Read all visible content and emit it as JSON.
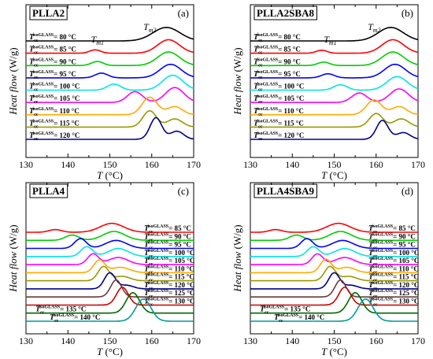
{
  "chart_data": [
    {
      "type": "line",
      "panel_name": "PLLA2",
      "panel_letter": "(a)",
      "xlabel": "T (°C)",
      "ylabel": "Heat flow (W/g)",
      "xlim": [
        130,
        170
      ],
      "x_ticks": [
        130,
        140,
        150,
        160,
        170
      ],
      "peak_labels": [
        {
          "text": "Tm1",
          "x": 145.5
        },
        {
          "text": "Tm2",
          "x": 158
        }
      ],
      "series": [
        {
          "label": "Tcc isoGLASS = 80 °C",
          "color": "#000000",
          "peaks": [
            {
              "x": 163.5,
              "h": 1.0,
              "w": 3.2
            }
          ]
        },
        {
          "label": "Tcc isoGLASS = 85 °C",
          "color": "#ff0000",
          "peaks": [
            {
              "x": 164,
              "h": 1.0,
              "w": 2.6
            },
            {
              "x": 146.5,
              "h": 0.25,
              "w": 1.3
            }
          ]
        },
        {
          "label": "Tcc isoGLASS = 90 °C",
          "color": "#00cc00",
          "peaks": [
            {
              "x": 164,
              "h": 1.0,
              "w": 2.6
            },
            {
              "x": 147,
              "h": 0.3,
              "w": 1.4
            }
          ]
        },
        {
          "label": "Tcc isoGLASS = 95 °C",
          "color": "#0000ff",
          "peaks": [
            {
              "x": 164.5,
              "h": 1.0,
              "w": 2.5
            },
            {
              "x": 148,
              "h": 0.35,
              "w": 1.5
            }
          ]
        },
        {
          "label": "Tcc isoGLASS = 100 °C",
          "color": "#00e5e5",
          "peaks": [
            {
              "x": 165,
              "h": 1.1,
              "w": 2.4
            },
            {
              "x": 151,
              "h": 0.45,
              "w": 1.6
            }
          ]
        },
        {
          "label": "Tcc isoGLASS = 105 °C",
          "color": "#ff00ff",
          "peaks": [
            {
              "x": 165.5,
              "h": 1.1,
              "w": 2.2
            },
            {
              "x": 156,
              "h": 0.8,
              "w": 1.8
            }
          ]
        },
        {
          "label": "Tcc isoGLASS = 110 °C",
          "color": "#ffaa00",
          "peaks": [
            {
              "x": 159.5,
              "h": 1.3,
              "w": 1.8
            },
            {
              "x": 165.5,
              "h": 0.6,
              "w": 1.8
            }
          ]
        },
        {
          "label": "Tcc isoGLASS = 115 °C",
          "color": "#999900",
          "peaks": [
            {
              "x": 159.5,
              "h": 1.2,
              "w": 1.6
            },
            {
              "x": 165.5,
              "h": 0.6,
              "w": 1.8
            }
          ]
        },
        {
          "label": "Tcc isoGLASS = 120 °C",
          "color": "#000088",
          "peaks": [
            {
              "x": 161,
              "h": 1.6,
              "w": 1.4
            },
            {
              "x": 166,
              "h": 0.6,
              "w": 1.6
            }
          ]
        }
      ]
    },
    {
      "type": "line",
      "panel_name": "PLLA2SBA8",
      "panel_letter": "(b)",
      "xlabel": "T (°C)",
      "ylabel": "Heat flow (W/g)",
      "xlim": [
        130,
        170
      ],
      "x_ticks": [
        130,
        140,
        150,
        160,
        170
      ],
      "peak_labels": [
        {
          "text": "Tm1",
          "x": 147.5
        },
        {
          "text": "Tm2",
          "x": 158
        }
      ],
      "series": [
        {
          "label": "Tcc isoGLASS = 80 °C",
          "color": "#000000",
          "peaks": [
            {
              "x": 163.5,
              "h": 1.0,
              "w": 3.0
            }
          ]
        },
        {
          "label": "Tcc isoGLASS = 85 °C",
          "color": "#ff0000",
          "peaks": [
            {
              "x": 164,
              "h": 1.0,
              "w": 2.6
            },
            {
              "x": 147,
              "h": 0.22,
              "w": 1.3
            }
          ]
        },
        {
          "label": "Tcc isoGLASS = 90 °C",
          "color": "#00cc00",
          "peaks": [
            {
              "x": 164,
              "h": 1.0,
              "w": 2.6
            },
            {
              "x": 147.5,
              "h": 0.25,
              "w": 1.4
            }
          ]
        },
        {
          "label": "Tcc isoGLASS = 95 °C",
          "color": "#0000ff",
          "peaks": [
            {
              "x": 164.5,
              "h": 1.0,
              "w": 2.5
            },
            {
              "x": 148.5,
              "h": 0.3,
              "w": 1.5
            }
          ]
        },
        {
          "label": "Tcc isoGLASS = 100 °C",
          "color": "#00e5e5",
          "peaks": [
            {
              "x": 165,
              "h": 1.0,
              "w": 2.4
            },
            {
              "x": 151.5,
              "h": 0.4,
              "w": 1.6
            }
          ]
        },
        {
          "label": "Tcc isoGLASS = 105 °C",
          "color": "#ff00ff",
          "peaks": [
            {
              "x": 165.5,
              "h": 1.0,
              "w": 2.2
            },
            {
              "x": 156,
              "h": 0.7,
              "w": 1.8
            }
          ]
        },
        {
          "label": "Tcc isoGLASS = 110 °C",
          "color": "#ffaa00",
          "peaks": [
            {
              "x": 159.5,
              "h": 1.1,
              "w": 1.8
            },
            {
              "x": 165.5,
              "h": 0.6,
              "w": 1.8
            }
          ]
        },
        {
          "label": "Tcc isoGLASS = 115 °C",
          "color": "#999900",
          "peaks": [
            {
              "x": 160,
              "h": 1.0,
              "w": 1.6
            },
            {
              "x": 166,
              "h": 0.6,
              "w": 1.8
            }
          ]
        },
        {
          "label": "Tcc isoGLASS = 120 °C",
          "color": "#000088",
          "peaks": [
            {
              "x": 161.5,
              "h": 1.4,
              "w": 1.4
            },
            {
              "x": 166.5,
              "h": 0.5,
              "w": 1.6
            }
          ]
        }
      ]
    },
    {
      "type": "line",
      "panel_name": "PLLA4",
      "panel_letter": "(c)",
      "xlabel": "T (°C)",
      "ylabel": "Heat flow (W/g)",
      "xlim": [
        130,
        170
      ],
      "x_ticks": [
        130,
        140,
        150,
        160,
        170
      ],
      "peak_labels": [],
      "series": [
        {
          "label": "Tcc isoGLASS = 85 °C",
          "color": "#ff0000",
          "peaks": [
            {
              "x": 150.5,
              "h": 1.0,
              "w": 2.8
            },
            {
              "x": 137,
              "h": 0.3,
              "w": 1.5
            }
          ]
        },
        {
          "label": "Tcc isoGLASS = 90 °C",
          "color": "#00cc00",
          "peaks": [
            {
              "x": 151,
              "h": 1.0,
              "w": 2.6
            },
            {
              "x": 141,
              "h": 0.6,
              "w": 1.6
            }
          ]
        },
        {
          "label": "Tcc isoGLASS = 95 °C",
          "color": "#0000ff",
          "peaks": [
            {
              "x": 151.5,
              "h": 0.9,
              "w": 2.5
            },
            {
              "x": 143,
              "h": 1.1,
              "w": 1.4
            }
          ]
        },
        {
          "label": "Tcc isoGLASS = 100 °C",
          "color": "#00e5e5",
          "peaks": [
            {
              "x": 152,
              "h": 0.9,
              "w": 2.4
            },
            {
              "x": 144.5,
              "h": 1.1,
              "w": 1.4
            }
          ]
        },
        {
          "label": "Tcc isoGLASS = 105 °C",
          "color": "#ff00ff",
          "peaks": [
            {
              "x": 152,
              "h": 0.8,
              "w": 2.3
            },
            {
              "x": 146,
              "h": 1.2,
              "w": 1.3
            }
          ]
        },
        {
          "label": "Tcc isoGLASS = 110 °C",
          "color": "#ffaa00",
          "peaks": [
            {
              "x": 152.5,
              "h": 0.6,
              "w": 2.2
            },
            {
              "x": 147.5,
              "h": 1.4,
              "w": 1.3
            }
          ]
        },
        {
          "label": "Tcc isoGLASS = 115 °C",
          "color": "#999900",
          "peaks": [
            {
              "x": 148.5,
              "h": 1.6,
              "w": 1.3
            },
            {
              "x": 153,
              "h": 0.5,
              "w": 1.8
            }
          ]
        },
        {
          "label": "Tcc isoGLASS = 120 °C",
          "color": "#000088",
          "peaks": [
            {
              "x": 150,
              "h": 1.8,
              "w": 1.3
            },
            {
              "x": 154,
              "h": 0.4,
              "w": 1.6
            }
          ]
        },
        {
          "label": "Tcc isoGLASS = 125 °C",
          "color": "#6b3a3a",
          "peaks": [
            {
              "x": 151.5,
              "h": 1.9,
              "w": 1.3
            }
          ]
        },
        {
          "label": "Tcc isoGLASS = 130 °C",
          "color": "#cc0000",
          "peaks": [
            {
              "x": 153,
              "h": 2.0,
              "w": 1.4
            }
          ]
        },
        {
          "label": "Tcc isoGLASS = 135 °C",
          "color": "#006600",
          "peaks": [
            {
              "x": 155.5,
              "h": 2.3,
              "w": 1.6
            }
          ]
        },
        {
          "label": "Tcc isoGLASS = 140 °C",
          "color": "#009999",
          "peaks": [
            {
              "x": 158,
              "h": 2.5,
              "w": 1.8
            }
          ]
        }
      ]
    },
    {
      "type": "line",
      "panel_name": "PLLA4SBA9",
      "panel_letter": "(d)",
      "xlabel": "T (°C)",
      "ylabel": "Heat flow (W/g)",
      "xlim": [
        130,
        170
      ],
      "x_ticks": [
        130,
        140,
        150,
        160,
        170
      ],
      "peak_labels": [],
      "series": [
        {
          "label": "Tcc isoGLASS = 85 °C",
          "color": "#ff0000",
          "peaks": [
            {
              "x": 151,
              "h": 1.0,
              "w": 2.8
            },
            {
              "x": 136,
              "h": 0.3,
              "w": 1.5
            }
          ]
        },
        {
          "label": "Tcc isoGLASS = 90 °C",
          "color": "#00cc00",
          "peaks": [
            {
              "x": 151.5,
              "h": 1.0,
              "w": 2.6
            },
            {
              "x": 141,
              "h": 0.6,
              "w": 1.6
            }
          ]
        },
        {
          "label": "Tcc isoGLASS = 95 °C",
          "color": "#0000ff",
          "peaks": [
            {
              "x": 152,
              "h": 0.9,
              "w": 2.5
            },
            {
              "x": 143.5,
              "h": 1.1,
              "w": 1.4
            }
          ]
        },
        {
          "label": "Tcc isoGLASS = 100 °C",
          "color": "#00e5e5",
          "peaks": [
            {
              "x": 152.5,
              "h": 0.9,
              "w": 2.4
            },
            {
              "x": 145,
              "h": 1.1,
              "w": 1.4
            }
          ]
        },
        {
          "label": "Tcc isoGLASS = 105 °C",
          "color": "#ff00ff",
          "peaks": [
            {
              "x": 152.5,
              "h": 0.8,
              "w": 2.3
            },
            {
              "x": 146,
              "h": 1.2,
              "w": 1.3
            }
          ]
        },
        {
          "label": "Tcc isoGLASS = 110 °C",
          "color": "#ffaa00",
          "peaks": [
            {
              "x": 148,
              "h": 1.5,
              "w": 1.3
            },
            {
              "x": 153,
              "h": 0.6,
              "w": 2.0
            }
          ]
        },
        {
          "label": "Tcc isoGLASS = 115 °C",
          "color": "#999900",
          "peaks": [
            {
              "x": 149,
              "h": 1.6,
              "w": 1.3
            },
            {
              "x": 153.5,
              "h": 0.5,
              "w": 1.8
            }
          ]
        },
        {
          "label": "Tcc isoGLASS = 120 °C",
          "color": "#000088",
          "peaks": [
            {
              "x": 150,
              "h": 1.8,
              "w": 1.3
            },
            {
              "x": 154,
              "h": 0.4,
              "w": 1.6
            }
          ]
        },
        {
          "label": "Tcc isoGLASS = 125 °C",
          "color": "#6b3a3a",
          "peaks": [
            {
              "x": 151.5,
              "h": 1.9,
              "w": 1.3
            }
          ]
        },
        {
          "label": "Tcc isoGLASS = 130 °C",
          "color": "#cc0000",
          "peaks": [
            {
              "x": 152.5,
              "h": 2.0,
              "w": 1.4
            }
          ]
        },
        {
          "label": "Tcc isoGLASS = 135 °C",
          "color": "#006600",
          "peaks": [
            {
              "x": 155,
              "h": 2.3,
              "w": 1.6
            }
          ]
        },
        {
          "label": "Tcc isoGLASS = 140 °C",
          "color": "#009999",
          "peaks": [
            {
              "x": 157.5,
              "h": 2.5,
              "w": 1.8
            }
          ]
        }
      ]
    }
  ]
}
